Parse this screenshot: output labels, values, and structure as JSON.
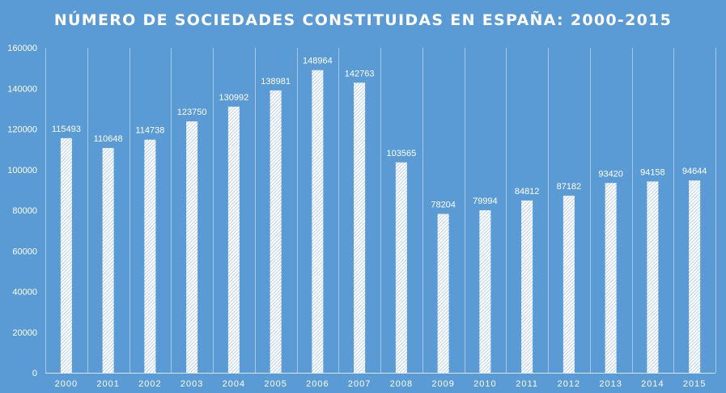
{
  "chart_data": {
    "type": "bar",
    "title": "NÚMERO DE SOCIEDADES CONSTITUIDAS EN ESPAÑA: 2000-2015",
    "xlabel": "",
    "ylabel": "",
    "categories": [
      "2000",
      "2001",
      "2002",
      "2003",
      "2004",
      "2005",
      "2006",
      "2007",
      "2008",
      "2009",
      "2010",
      "2011",
      "2012",
      "2013",
      "2014",
      "2015"
    ],
    "values": [
      115493,
      110648,
      114738,
      123750,
      130992,
      138981,
      148964,
      142763,
      103565,
      78204,
      79994,
      84812,
      87182,
      93420,
      94158,
      94644
    ],
    "data_labels": [
      "115493",
      "110648",
      "114738",
      "123750",
      "130992",
      "138981",
      "148964",
      "142763",
      "103565",
      "78204",
      "79994",
      "84812",
      "87182",
      "93420",
      "94158",
      "94644"
    ],
    "ylim": [
      0,
      160000
    ],
    "yticks": [
      "0",
      "20000",
      "40000",
      "60000",
      "80000",
      "100000",
      "120000",
      "140000",
      "160000"
    ],
    "ytick_values": [
      0,
      20000,
      40000,
      60000,
      80000,
      100000,
      120000,
      140000,
      160000
    ],
    "grid": "vertical",
    "colors": {
      "background": "#5b9bd5",
      "text": "#ffffff",
      "bar_fill": "#ffffff",
      "bar_hatch": "#8fb4dc",
      "grid": "#a9c6e8",
      "axis": "#d9e6f5"
    }
  }
}
